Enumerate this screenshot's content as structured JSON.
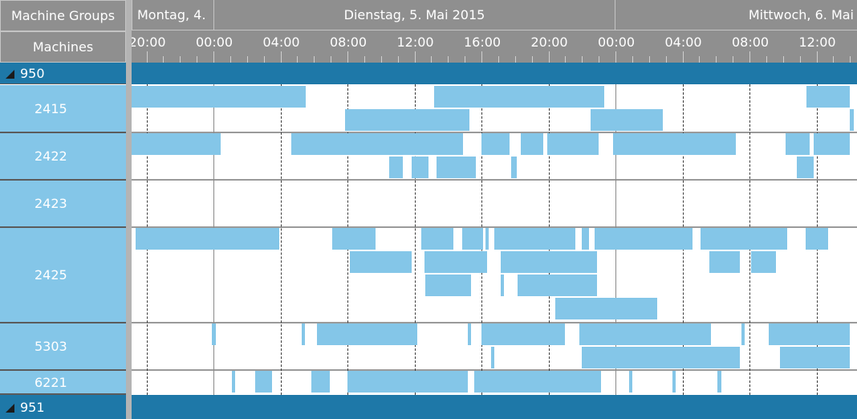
{
  "header": {
    "groups_label": "Machine Groups",
    "machines_label": "Machines"
  },
  "timeline": {
    "days": [
      "Montag, 4.",
      "Dienstag, 5. Mai 2015",
      "Mittwoch, 6. Mai"
    ],
    "hours": [
      "20:00",
      "00:00",
      "04:00",
      "08:00",
      "12:00",
      "16:00",
      "20:00",
      "00:00",
      "04:00",
      "08:00",
      "12:00"
    ]
  },
  "groups": [
    {
      "name": "950",
      "machines": [
        {
          "id": "2415",
          "tasks": [
            {
              "lane": 0,
              "start": "05-04 18:50",
              "end": "05-05 05:30"
            },
            {
              "lane": 0,
              "start": "05-05 13:10",
              "end": "05-05 23:20"
            },
            {
              "lane": 0,
              "start": "05-06 11:25",
              "end": "05-06 14:00"
            },
            {
              "lane": 1,
              "start": "05-05 07:50",
              "end": "05-05 15:15"
            },
            {
              "lane": 1,
              "start": "05-05 22:30",
              "end": "05-06 02:50"
            },
            {
              "lane": 1,
              "start": "05-06 14:00",
              "end": "05-06 14:00"
            }
          ]
        },
        {
          "id": "2422",
          "tasks": [
            {
              "lane": 0,
              "start": "05-04 18:00",
              "end": "05-05 00:25"
            },
            {
              "lane": 0,
              "start": "05-05 04:40",
              "end": "05-05 14:55"
            },
            {
              "lane": 0,
              "start": "05-05 16:00",
              "end": "05-05 17:40"
            },
            {
              "lane": 0,
              "start": "05-05 18:20",
              "end": "05-05 19:40"
            },
            {
              "lane": 0,
              "start": "05-05 19:55",
              "end": "05-05 23:00"
            },
            {
              "lane": 0,
              "start": "05-05 23:50",
              "end": "05-06 07:10"
            },
            {
              "lane": 0,
              "start": "05-06 10:10",
              "end": "05-06 11:35"
            },
            {
              "lane": 0,
              "start": "05-06 11:50",
              "end": "05-06 14:00"
            },
            {
              "lane": 1,
              "start": "05-05 10:30",
              "end": "05-05 11:20"
            },
            {
              "lane": 1,
              "start": "05-05 11:50",
              "end": "05-05 12:50"
            },
            {
              "lane": 1,
              "start": "05-05 13:20",
              "end": "05-05 15:40"
            },
            {
              "lane": 1,
              "start": "05-05 17:45",
              "end": "05-05 18:05"
            },
            {
              "lane": 1,
              "start": "05-06 10:50",
              "end": "05-06 11:50"
            }
          ]
        },
        {
          "id": "2423",
          "tasks": []
        },
        {
          "id": "2425",
          "tasks": [
            {
              "lane": 0,
              "start": "05-04 19:20",
              "end": "05-05 03:55"
            },
            {
              "lane": 0,
              "start": "05-05 07:05",
              "end": "05-05 09:40"
            },
            {
              "lane": 0,
              "start": "05-05 12:25",
              "end": "05-05 14:20"
            },
            {
              "lane": 0,
              "start": "05-05 14:50",
              "end": "05-05 16:05"
            },
            {
              "lane": 0,
              "start": "05-05 16:15",
              "end": "05-05 16:25"
            },
            {
              "lane": 0,
              "start": "05-05 16:45",
              "end": "05-05 21:35"
            },
            {
              "lane": 0,
              "start": "05-05 22:00",
              "end": "05-05 22:25"
            },
            {
              "lane": 0,
              "start": "05-05 22:45",
              "end": "05-06 04:35"
            },
            {
              "lane": 0,
              "start": "05-06 05:05",
              "end": "05-06 10:15"
            },
            {
              "lane": 0,
              "start": "05-06 11:20",
              "end": "05-06 12:40"
            },
            {
              "lane": 1,
              "start": "05-05 08:10",
              "end": "05-05 11:50"
            },
            {
              "lane": 1,
              "start": "05-05 12:35",
              "end": "05-05 16:20"
            },
            {
              "lane": 1,
              "start": "05-05 17:10",
              "end": "05-05 22:55"
            },
            {
              "lane": 1,
              "start": "05-06 05:35",
              "end": "05-06 07:25"
            },
            {
              "lane": 1,
              "start": "05-06 08:05",
              "end": "05-06 09:35"
            },
            {
              "lane": 2,
              "start": "05-05 12:40",
              "end": "05-05 15:25"
            },
            {
              "lane": 2,
              "start": "05-05 17:10",
              "end": "05-05 17:20"
            },
            {
              "lane": 2,
              "start": "05-05 18:10",
              "end": "05-05 22:55"
            },
            {
              "lane": 3,
              "start": "05-05 20:25",
              "end": "05-06 02:30"
            }
          ]
        },
        {
          "id": "5303",
          "tasks": [
            {
              "lane": 0,
              "start": "05-04 23:55",
              "end": "05-05 00:10"
            },
            {
              "lane": 0,
              "start": "05-05 05:15",
              "end": "05-05 05:25"
            },
            {
              "lane": 0,
              "start": "05-05 06:10",
              "end": "05-05 12:10"
            },
            {
              "lane": 0,
              "start": "05-05 15:10",
              "end": "05-05 15:20"
            },
            {
              "lane": 0,
              "start": "05-05 16:00",
              "end": "05-05 21:00"
            },
            {
              "lane": 0,
              "start": "05-05 21:50",
              "end": "05-06 05:40"
            },
            {
              "lane": 0,
              "start": "05-06 07:30",
              "end": "05-06 07:40"
            },
            {
              "lane": 0,
              "start": "05-06 09:10",
              "end": "05-06 14:00"
            },
            {
              "lane": 1,
              "start": "05-05 16:35",
              "end": "05-05 16:45"
            },
            {
              "lane": 1,
              "start": "05-05 22:00",
              "end": "05-06 07:25"
            },
            {
              "lane": 1,
              "start": "05-06 09:50",
              "end": "05-06 14:00"
            }
          ]
        },
        {
          "id": "6221",
          "tasks": [
            {
              "lane": 0,
              "start": "05-05 01:05",
              "end": "05-05 01:15"
            },
            {
              "lane": 0,
              "start": "05-05 02:30",
              "end": "05-05 03:30"
            },
            {
              "lane": 0,
              "start": "05-05 05:50",
              "end": "05-05 06:55"
            },
            {
              "lane": 0,
              "start": "05-05 08:00",
              "end": "05-05 15:10"
            },
            {
              "lane": 0,
              "start": "05-05 15:35",
              "end": "05-05 23:10"
            },
            {
              "lane": 0,
              "start": "05-06 00:50",
              "end": "05-06 01:00"
            },
            {
              "lane": 0,
              "start": "05-06 03:25",
              "end": "05-06 03:35"
            },
            {
              "lane": 0,
              "start": "05-06 06:05",
              "end": "05-06 06:20"
            }
          ]
        }
      ]
    },
    {
      "name": "951",
      "machines": []
    }
  ],
  "colors": {
    "group_band": "#1e78a8",
    "machine_cell": "#84c6e8",
    "task_bar": "#84c6e8",
    "header_bg": "#8f8f8f"
  }
}
